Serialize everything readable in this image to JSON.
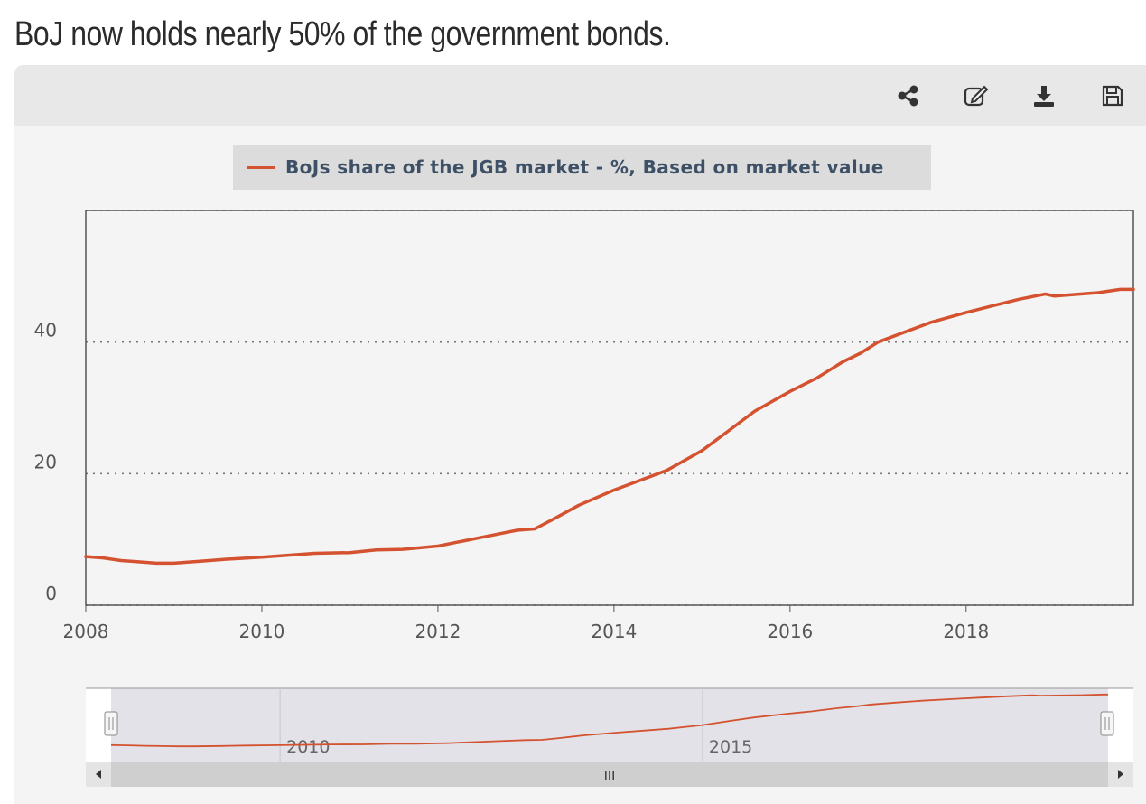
{
  "headline": "BoJ now holds nearly 50% of the government bonds.",
  "toolbar": {
    "icons": [
      "share-icon",
      "edit-icon",
      "download-icon",
      "save-icon"
    ]
  },
  "colors": {
    "series": "#d4522f",
    "panel": "#f4f4f4",
    "toolbar": "#e8e8e8",
    "legend_bg": "#dcdcdc",
    "legend_text": "#3d5066",
    "axis_text": "#555555"
  },
  "chart_data": {
    "type": "line",
    "legend_position": "top-center",
    "grid": "horizontal dotted",
    "x_ticks": [
      "2008",
      "2010",
      "2012",
      "2014",
      "2016",
      "2018"
    ],
    "y_ticks": [
      "0",
      "20",
      "40"
    ],
    "xlim": [
      2008,
      2019.9
    ],
    "ylim": [
      0,
      60
    ],
    "navigator": {
      "range": [
        2008,
        2019.8
      ],
      "labels": [
        "2010",
        "2015"
      ],
      "scroll_handle": "III"
    },
    "series": [
      {
        "name": "BoJs share of the JGB market - %, Based on market value",
        "x": [
          2008.0,
          2008.2,
          2008.4,
          2008.6,
          2008.8,
          2009.0,
          2009.3,
          2009.6,
          2010.0,
          2010.3,
          2010.6,
          2011.0,
          2011.3,
          2011.6,
          2012.0,
          2012.3,
          2012.6,
          2012.9,
          2013.1,
          2013.3,
          2013.6,
          2014.0,
          2014.3,
          2014.6,
          2015.0,
          2015.3,
          2015.6,
          2016.0,
          2016.3,
          2016.6,
          2016.8,
          2017.0,
          2017.3,
          2017.6,
          2018.0,
          2018.3,
          2018.6,
          2018.9,
          2019.0,
          2019.2,
          2019.5,
          2019.75,
          2019.9
        ],
        "values": [
          7.4,
          7.2,
          6.8,
          6.6,
          6.4,
          6.4,
          6.7,
          7.0,
          7.3,
          7.6,
          7.9,
          8.0,
          8.4,
          8.5,
          9.0,
          9.8,
          10.6,
          11.4,
          11.6,
          13.0,
          15.2,
          17.5,
          19.0,
          20.5,
          23.5,
          26.5,
          29.5,
          32.5,
          34.5,
          37.0,
          38.3,
          40.0,
          41.5,
          43.0,
          44.5,
          45.5,
          46.5,
          47.3,
          47.0,
          47.2,
          47.5,
          48.0,
          48.0
        ]
      }
    ]
  }
}
